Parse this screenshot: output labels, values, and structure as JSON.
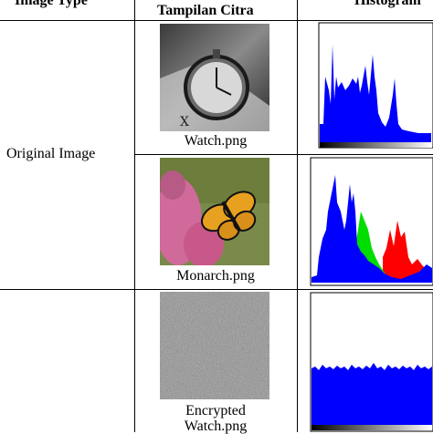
{
  "header": {
    "col_type": "Image Type",
    "col_display": "Tampilan Citra",
    "col_hist": "Histogram"
  },
  "rows": [
    {
      "type_label": "Original Image",
      "images": [
        {
          "caption": "Watch.png"
        },
        {
          "caption": "Monarch.png"
        }
      ]
    },
    {
      "type_label": "",
      "images": [
        {
          "caption_lines": [
            "Encrypted",
            "Watch.png"
          ]
        }
      ]
    }
  ],
  "colors": {
    "blue": "#0000ff",
    "green": "#00dd00",
    "red": "#ff0000"
  }
}
